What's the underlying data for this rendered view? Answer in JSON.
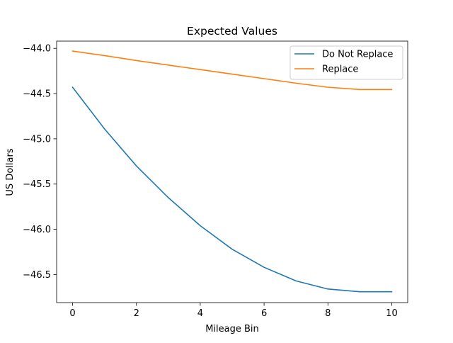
{
  "chart_data": {
    "type": "line",
    "title": "Expected Values",
    "xlabel": "Mileage Bin",
    "ylabel": "US Dollars",
    "x": [
      0,
      1,
      2,
      3,
      4,
      5,
      6,
      7,
      8,
      9,
      10
    ],
    "xlim": [
      -0.5,
      10.5
    ],
    "ylim": [
      -46.81,
      -43.92
    ],
    "x_ticks": [
      0,
      2,
      4,
      6,
      8,
      10
    ],
    "x_tick_labels": [
      "0",
      "2",
      "4",
      "6",
      "8",
      "10"
    ],
    "y_ticks": [
      -44.0,
      -44.5,
      -45.0,
      -45.5,
      -46.0,
      -46.5
    ],
    "y_tick_labels": [
      "−44.0",
      "−44.5",
      "−45.0",
      "−45.5",
      "−46.0",
      "−46.5"
    ],
    "grid": false,
    "legend_position": "top-right",
    "series": [
      {
        "name": "Do Not Replace",
        "color": "#1f77b4",
        "values": [
          -44.43,
          -44.89,
          -45.3,
          -45.65,
          -45.96,
          -46.22,
          -46.42,
          -46.57,
          -46.66,
          -46.69,
          -46.69
        ]
      },
      {
        "name": "Replace",
        "color": "#ff7f0e",
        "values": [
          -44.03,
          -44.08,
          -44.135,
          -44.185,
          -44.235,
          -44.285,
          -44.335,
          -44.385,
          -44.43,
          -44.455,
          -44.455
        ]
      }
    ]
  }
}
